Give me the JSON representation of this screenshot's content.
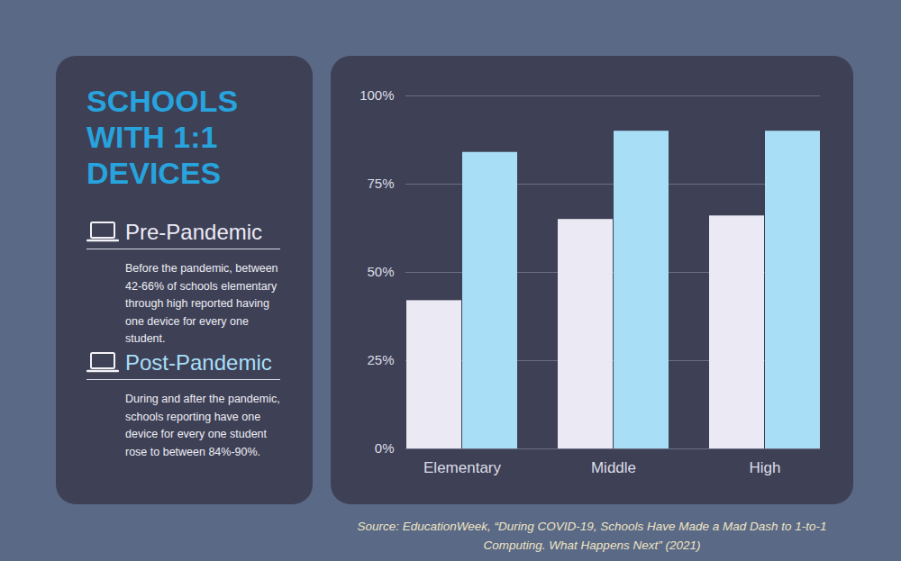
{
  "chart_data": {
    "type": "bar",
    "title": "SCHOOLS WITH 1:1 DEVICES",
    "categories": [
      "Elementary",
      "Middle",
      "High"
    ],
    "series": [
      {
        "name": "Pre-Pandemic",
        "color": "#ebeaf4",
        "values": [
          42,
          65,
          66
        ]
      },
      {
        "name": "Post-Pandemic",
        "color": "#a8dff7",
        "values": [
          84,
          90,
          90
        ]
      }
    ],
    "annotations": [
      "Before the pandemic, between 42-66% of schools elementary through high reported having one device for every one student.",
      "During and after the pandemic, schools reporting have one device for every one student rose to between 84%-90%."
    ],
    "source": "Source: EducationWeek, “During COVID-19, Schools Have Made a Mad Dash to 1-to-1 Computing. What Happens Next” (2021)",
    "ylim": [
      0,
      100
    ],
    "yticks": [
      {
        "value": 0,
        "label": "0%"
      },
      {
        "value": 25,
        "label": "25%"
      },
      {
        "value": 50,
        "label": "50%"
      },
      {
        "value": 75,
        "label": "75%"
      },
      {
        "value": 100,
        "label": "100%"
      }
    ],
    "grid": true
  }
}
